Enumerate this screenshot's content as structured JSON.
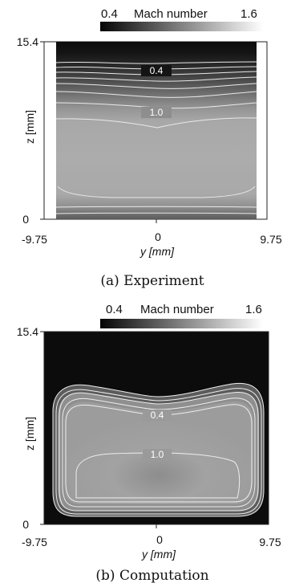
{
  "chart_data": [
    {
      "type": "heatmap",
      "caption": "(a) Experiment",
      "colorbar": {
        "label": "Mach number",
        "min": 0.4,
        "max": 1.6,
        "colors": [
          "#050505",
          "#ffffff"
        ]
      },
      "xlabel": "y [mm]",
      "ylabel": "z [mm]",
      "xlim": [
        -9.75,
        9.75
      ],
      "ylim": [
        0,
        15.4
      ],
      "xticks": [
        "-9.75",
        "0",
        "9.75"
      ],
      "yticks": [
        "0",
        "15.4"
      ],
      "contour_labels": [
        {
          "text": "0.4",
          "y_mm": 0.0,
          "z_mm": 12.9
        },
        {
          "text": "1.0",
          "y_mm": 0.0,
          "z_mm": 9.6
        }
      ]
    },
    {
      "type": "heatmap",
      "caption": "(b) Computation",
      "colorbar": {
        "label": "Mach number",
        "min": 0.4,
        "max": 1.6,
        "colors": [
          "#050505",
          "#ffffff"
        ]
      },
      "xlabel": "y [mm]",
      "ylabel": "z [mm]",
      "xlim": [
        -9.75,
        9.75
      ],
      "ylim": [
        0,
        15.4
      ],
      "xticks": [
        "-9.75",
        "0",
        "9.75"
      ],
      "yticks": [
        "0",
        "15.4"
      ],
      "contour_labels": [
        {
          "text": "0.4",
          "y_mm": 0.0,
          "z_mm": 12.2
        },
        {
          "text": "1.0",
          "y_mm": 0.0,
          "z_mm": 6.2
        }
      ]
    }
  ]
}
